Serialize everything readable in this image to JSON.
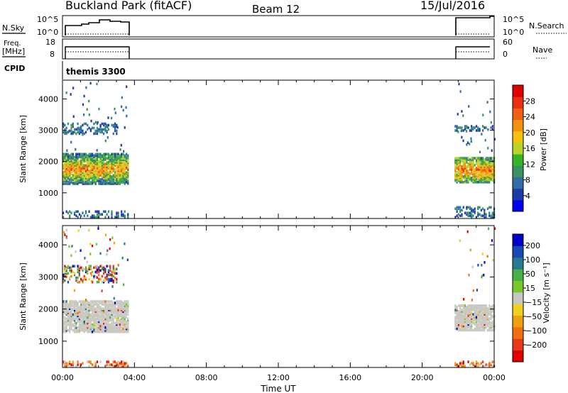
{
  "header": {
    "station": "Buckland Park (fitACF)",
    "beam": "Beam 12",
    "date": "15/Jul/2016"
  },
  "panels": {
    "nsky": {
      "left_label": "N.Sky",
      "right_label": "N.Search",
      "left_ticks": [
        "10^5",
        "10^0"
      ],
      "right_ticks": [
        "10^5",
        "10^0"
      ]
    },
    "freq": {
      "left_label_1": "Freq.",
      "left_label_2": "[MHz]",
      "right_label": "Nave",
      "left_ticks": [
        "18",
        "8"
      ],
      "right_ticks": [
        "60",
        "0"
      ]
    },
    "cpid": {
      "label": "CPID",
      "program": "themis 3300"
    }
  },
  "colors": {
    "velocity_ground": "#c8c8c0",
    "axis": "#000000"
  },
  "chart_data": [
    {
      "type": "heatmap",
      "name": "power",
      "ylabel": "Slant Range [km]",
      "xlabel": "",
      "yticks": [
        1000,
        2000,
        3000,
        4000
      ],
      "ylim": [
        180,
        4600
      ],
      "xlim_hours": [
        0,
        24
      ],
      "colorbar": {
        "label": "Power [dB]",
        "ticks": [
          "4",
          "8",
          "12",
          "16",
          "20",
          "24",
          "28"
        ],
        "colors": [
          "#0000f0",
          "#1c3ca8",
          "#2f6fa5",
          "#3c9160",
          "#38b428",
          "#b8d428",
          "#f5c010",
          "#f59010",
          "#f06010",
          "#e83010",
          "#e00000"
        ]
      },
      "data_blocks": [
        {
          "t": [
            0.0,
            3.6
          ],
          "range": [
            1250,
            2200
          ],
          "level": "mixed-high"
        },
        {
          "t": [
            0.0,
            3.0
          ],
          "range": [
            2850,
            3200
          ],
          "level": "low"
        },
        {
          "t": [
            0.0,
            3.6
          ],
          "range": [
            180,
            400
          ],
          "level": "low"
        },
        {
          "t": [
            21.8,
            24.0
          ],
          "range": [
            1300,
            2100
          ],
          "level": "mixed-high"
        },
        {
          "t": [
            21.8,
            24.0
          ],
          "range": [
            2950,
            3100
          ],
          "level": "low"
        },
        {
          "t": [
            21.8,
            24.0
          ],
          "range": [
            180,
            500
          ],
          "level": "low"
        }
      ]
    },
    {
      "type": "heatmap",
      "name": "velocity",
      "ylabel": "Slant Range [km]",
      "xlabel": "Time UT",
      "xticks": [
        "00:00",
        "04:00",
        "08:00",
        "12:00",
        "16:00",
        "20:00",
        "00:00"
      ],
      "yticks": [
        1000,
        2000,
        3000,
        4000
      ],
      "ylim": [
        180,
        4600
      ],
      "xlim_hours": [
        0,
        24
      ],
      "colorbar": {
        "label": "Velocity [m s⁻¹]",
        "ticks": [
          "200",
          "100",
          "50",
          "15",
          "−15",
          "−50",
          "−100",
          "−200"
        ],
        "colors": [
          "#0000c8",
          "#1848b4",
          "#287890",
          "#48b048",
          "#78c828",
          "#c8c8c0",
          "#f0d020",
          "#f0a010",
          "#f07010",
          "#e83818",
          "#e00000"
        ]
      },
      "data_blocks": [
        {
          "t": [
            0.0,
            3.6
          ],
          "range": [
            1250,
            2200
          ],
          "level": "ground-scatter"
        },
        {
          "t": [
            0.0,
            3.0
          ],
          "range": [
            2800,
            3300
          ],
          "level": "mixed"
        },
        {
          "t": [
            0.0,
            3.6
          ],
          "range": [
            180,
            350
          ],
          "level": "negative"
        },
        {
          "t": [
            21.8,
            24.0
          ],
          "range": [
            1300,
            2100
          ],
          "level": "ground-scatter"
        },
        {
          "t": [
            21.8,
            24.0
          ],
          "range": [
            180,
            350
          ],
          "level": "negative"
        }
      ]
    }
  ]
}
